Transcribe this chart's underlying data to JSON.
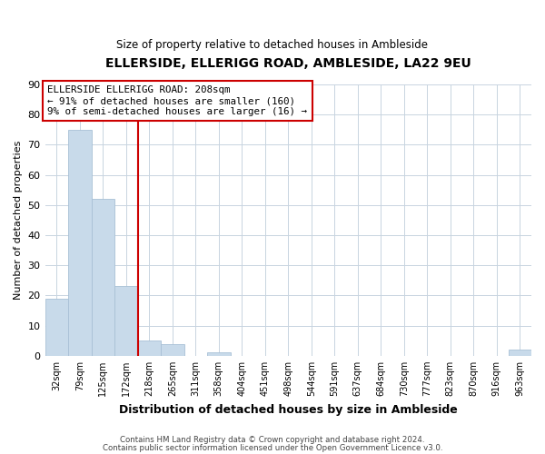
{
  "title": "ELLERSIDE, ELLERIGG ROAD, AMBLESIDE, LA22 9EU",
  "subtitle": "Size of property relative to detached houses in Ambleside",
  "xlabel": "Distribution of detached houses by size in Ambleside",
  "ylabel": "Number of detached properties",
  "bin_labels": [
    "32sqm",
    "79sqm",
    "125sqm",
    "172sqm",
    "218sqm",
    "265sqm",
    "311sqm",
    "358sqm",
    "404sqm",
    "451sqm",
    "498sqm",
    "544sqm",
    "591sqm",
    "637sqm",
    "684sqm",
    "730sqm",
    "777sqm",
    "823sqm",
    "870sqm",
    "916sqm",
    "963sqm"
  ],
  "bar_heights": [
    19,
    75,
    52,
    23,
    5,
    4,
    0,
    1,
    0,
    0,
    0,
    0,
    0,
    0,
    0,
    0,
    0,
    0,
    0,
    0,
    2
  ],
  "bar_color": "#c8daea",
  "bar_edge_color": "#a8c0d6",
  "property_bin_index": 4,
  "property_line_color": "#cc0000",
  "ylim": [
    0,
    90
  ],
  "yticks": [
    0,
    10,
    20,
    30,
    40,
    50,
    60,
    70,
    80,
    90
  ],
  "annotation_title": "ELLERSIDE ELLERIGG ROAD: 208sqm",
  "annotation_line1": "← 91% of detached houses are smaller (160)",
  "annotation_line2": "9% of semi-detached houses are larger (16) →",
  "footer_line1": "Contains HM Land Registry data © Crown copyright and database right 2024.",
  "footer_line2": "Contains public sector information licensed under the Open Government Licence v3.0.",
  "background_color": "#ffffff",
  "plot_bg_color": "#ffffff",
  "grid_color": "#c8d4e0"
}
